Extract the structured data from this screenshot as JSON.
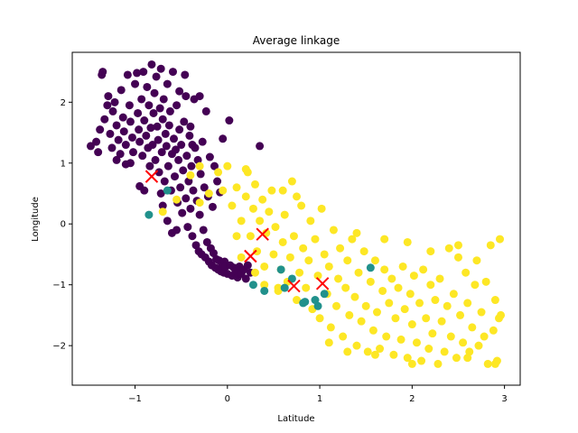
{
  "chart_data": {
    "type": "scatter",
    "title": "Average linkage",
    "xlabel": "Latitude",
    "ylabel": "Longitude",
    "xlim": [
      -1.68,
      3.17
    ],
    "ylim": [
      -2.65,
      2.82
    ],
    "xticks": [
      -1,
      0,
      1,
      2,
      3
    ],
    "yticks": [
      -2,
      -1,
      0,
      1,
      2
    ],
    "x_tick_labels": [
      "−1",
      "0",
      "1",
      "2",
      "3"
    ],
    "y_tick_labels": [
      "−2",
      "−1",
      "0",
      "1",
      "2"
    ],
    "grid": false,
    "legend": "none",
    "colors": {
      "cluster_purple": "#440154",
      "cluster_teal": "#21918c",
      "cluster_yellow": "#fde725",
      "centroid": "#ff0000"
    },
    "series": [
      {
        "color": "#440154",
        "points": [
          [
            -1.48,
            1.28
          ],
          [
            -1.42,
            1.35
          ],
          [
            -1.4,
            1.18
          ],
          [
            -1.38,
            1.55
          ],
          [
            -1.36,
            2.45
          ],
          [
            -1.35,
            2.5
          ],
          [
            -1.33,
            1.72
          ],
          [
            -1.3,
            1.95
          ],
          [
            -1.29,
            2.1
          ],
          [
            -1.27,
            1.48
          ],
          [
            -1.25,
            1.25
          ],
          [
            -1.24,
            1.85
          ],
          [
            -1.22,
            2.0
          ],
          [
            -1.2,
            1.62
          ],
          [
            -1.18,
            1.38
          ],
          [
            -1.16,
            1.15
          ],
          [
            -1.15,
            2.2
          ],
          [
            -1.13,
            1.75
          ],
          [
            -1.12,
            1.52
          ],
          [
            -1.1,
            1.3
          ],
          [
            -1.08,
            2.45
          ],
          [
            -1.06,
            1.95
          ],
          [
            -1.05,
            1.68
          ],
          [
            -1.03,
            1.42
          ],
          [
            -1.02,
            1.18
          ],
          [
            -1.0,
            2.3
          ],
          [
            -0.98,
            2.48
          ],
          [
            -0.97,
            1.82
          ],
          [
            -0.96,
            1.55
          ],
          [
            -0.95,
            1.35
          ],
          [
            -0.93,
            2.05
          ],
          [
            -0.92,
            1.12
          ],
          [
            -0.91,
            2.5
          ],
          [
            -0.9,
            1.7
          ],
          [
            -0.88,
            1.45
          ],
          [
            -0.87,
            2.25
          ],
          [
            -0.86,
            1.25
          ],
          [
            -0.85,
            1.95
          ],
          [
            -0.84,
            0.95
          ],
          [
            -0.83,
            1.58
          ],
          [
            -0.82,
            2.62
          ],
          [
            -0.81,
            1.3
          ],
          [
            -0.8,
            1.82
          ],
          [
            -0.79,
            2.15
          ],
          [
            -0.78,
            1.05
          ],
          [
            -0.77,
            2.42
          ],
          [
            -0.76,
            1.6
          ],
          [
            -0.75,
            1.38
          ],
          [
            -0.74,
            0.85
          ],
          [
            -0.73,
            1.9
          ],
          [
            -0.72,
            2.55
          ],
          [
            -0.71,
            1.18
          ],
          [
            -0.7,
            1.72
          ],
          [
            -0.69,
            2.05
          ],
          [
            -0.68,
            0.7
          ],
          [
            -0.67,
            1.48
          ],
          [
            -0.66,
            1.28
          ],
          [
            -0.65,
            2.3
          ],
          [
            -0.64,
            0.95
          ],
          [
            -0.63,
            1.62
          ],
          [
            -0.62,
            1.85
          ],
          [
            -0.61,
            0.55
          ],
          [
            -0.6,
            1.15
          ],
          [
            -0.59,
            2.5
          ],
          [
            -0.58,
            1.4
          ],
          [
            -0.57,
            0.78
          ],
          [
            -0.56,
            1.22
          ],
          [
            -0.55,
            1.95
          ],
          [
            -0.54,
            0.35
          ],
          [
            -0.53,
            1.05
          ],
          [
            -0.52,
            1.55
          ],
          [
            -0.51,
            0.6
          ],
          [
            -0.5,
            1.3
          ],
          [
            -0.49,
            0.18
          ],
          [
            -0.48,
            0.88
          ],
          [
            -0.47,
            1.68
          ],
          [
            -0.46,
            2.45
          ],
          [
            -0.45,
            0.42
          ],
          [
            -0.44,
            1.12
          ],
          [
            -0.43,
            -0.05
          ],
          [
            -0.42,
            0.7
          ],
          [
            -0.41,
            1.45
          ],
          [
            -0.4,
            0.25
          ],
          [
            -0.39,
            0.95
          ],
          [
            -0.38,
            -0.2
          ],
          [
            -0.37,
            0.55
          ],
          [
            -0.36,
            2.05
          ],
          [
            -0.35,
            1.25
          ],
          [
            -0.34,
            -0.35
          ],
          [
            -0.33,
            0.38
          ],
          [
            -0.32,
            1.05
          ],
          [
            -0.31,
            -0.45
          ],
          [
            -0.3,
            0.15
          ],
          [
            -0.29,
            0.82
          ],
          [
            -0.28,
            -0.5
          ],
          [
            -0.27,
            1.35
          ],
          [
            -0.26,
            -0.1
          ],
          [
            -0.25,
            0.6
          ],
          [
            -0.24,
            -0.55
          ],
          [
            -0.23,
            1.85
          ],
          [
            -0.22,
            -0.3
          ],
          [
            -0.21,
            0.45
          ],
          [
            -0.2,
            -0.62
          ],
          [
            -0.19,
            1.1
          ],
          [
            -0.18,
            -0.4
          ],
          [
            -0.17,
            -0.68
          ],
          [
            -0.16,
            0.28
          ],
          [
            -0.15,
            -0.48
          ],
          [
            -0.14,
            0.95
          ],
          [
            -0.13,
            -0.72
          ],
          [
            -0.12,
            -0.58
          ],
          [
            -0.11,
            0.7
          ],
          [
            -0.1,
            -0.75
          ],
          [
            -0.09,
            -0.6
          ],
          [
            -0.08,
            0.52
          ],
          [
            -0.07,
            -0.78
          ],
          [
            -0.06,
            -0.65
          ],
          [
            -0.05,
            1.4
          ],
          [
            -0.04,
            -0.8
          ],
          [
            -0.03,
            -0.62
          ],
          [
            -0.02,
            -0.7
          ],
          [
            0.0,
            -0.82
          ],
          [
            0.02,
            1.7
          ],
          [
            0.03,
            -0.68
          ],
          [
            0.05,
            -0.85
          ],
          [
            0.07,
            -0.72
          ],
          [
            0.09,
            -0.78
          ],
          [
            0.11,
            -0.88
          ],
          [
            0.13,
            -0.7
          ],
          [
            0.15,
            -0.82
          ],
          [
            0.18,
            -0.75
          ],
          [
            0.2,
            -0.9
          ],
          [
            0.22,
            -0.68
          ],
          [
            0.25,
            -0.8
          ],
          [
            0.35,
            1.28
          ],
          [
            -0.95,
            0.62
          ],
          [
            -0.72,
            0.5
          ],
          [
            -0.9,
            0.55
          ],
          [
            -1.05,
            1.0
          ],
          [
            -0.65,
            0.05
          ],
          [
            -0.6,
            -0.15
          ],
          [
            -0.55,
            -0.1
          ],
          [
            -0.7,
            0.3
          ],
          [
            -1.2,
            1.05
          ],
          [
            -1.1,
            0.98
          ],
          [
            -0.3,
            2.1
          ],
          [
            -0.52,
            2.18
          ],
          [
            -0.45,
            2.1
          ],
          [
            -0.4,
            1.6
          ],
          [
            -0.38,
            1.3
          ]
        ]
      },
      {
        "color": "#fde725",
        "points": [
          [
            -0.7,
            0.2
          ],
          [
            -0.55,
            0.4
          ],
          [
            -0.4,
            0.8
          ],
          [
            -0.3,
            0.95
          ],
          [
            -0.1,
            0.85
          ],
          [
            -0.05,
            0.55
          ],
          [
            0.0,
            0.95
          ],
          [
            0.05,
            0.3
          ],
          [
            0.1,
            0.6
          ],
          [
            0.15,
            0.05
          ],
          [
            0.2,
            0.45
          ],
          [
            0.22,
            0.85
          ],
          [
            0.25,
            -0.2
          ],
          [
            0.28,
            0.25
          ],
          [
            0.3,
            0.65
          ],
          [
            0.32,
            -0.45
          ],
          [
            0.35,
            0.05
          ],
          [
            0.38,
            0.4
          ],
          [
            0.4,
            -0.7
          ],
          [
            0.42,
            -0.15
          ],
          [
            0.45,
            0.2
          ],
          [
            0.48,
            0.55
          ],
          [
            0.5,
            -0.5
          ],
          [
            0.52,
            -0.05
          ],
          [
            0.55,
            -1.1
          ],
          [
            0.58,
            -0.75
          ],
          [
            0.6,
            -0.3
          ],
          [
            0.62,
            0.15
          ],
          [
            0.65,
            -0.95
          ],
          [
            0.68,
            -0.55
          ],
          [
            0.7,
            0.7
          ],
          [
            0.72,
            -0.2
          ],
          [
            0.75,
            -1.25
          ],
          [
            0.78,
            -0.8
          ],
          [
            0.8,
            0.3
          ],
          [
            0.82,
            -0.4
          ],
          [
            0.85,
            -1.05
          ],
          [
            0.88,
            -0.6
          ],
          [
            0.9,
            0.05
          ],
          [
            0.92,
            -1.4
          ],
          [
            0.95,
            -0.25
          ],
          [
            0.98,
            -0.85
          ],
          [
            1.0,
            -1.55
          ],
          [
            1.02,
            0.25
          ],
          [
            1.05,
            -0.5
          ],
          [
            1.08,
            -1.15
          ],
          [
            1.1,
            -0.7
          ],
          [
            1.12,
            -1.7
          ],
          [
            1.15,
            -0.1
          ],
          [
            1.18,
            -1.35
          ],
          [
            1.2,
            -0.9
          ],
          [
            1.22,
            -0.4
          ],
          [
            1.25,
            -1.85
          ],
          [
            1.28,
            -1.05
          ],
          [
            1.3,
            -0.6
          ],
          [
            1.32,
            -1.5
          ],
          [
            1.35,
            -0.25
          ],
          [
            1.38,
            -1.2
          ],
          [
            1.4,
            -2.0
          ],
          [
            1.42,
            -0.8
          ],
          [
            1.45,
            -1.6
          ],
          [
            1.48,
            -0.45
          ],
          [
            1.5,
            -1.35
          ],
          [
            1.52,
            -2.1
          ],
          [
            1.55,
            -0.95
          ],
          [
            1.58,
            -1.75
          ],
          [
            1.6,
            -0.6
          ],
          [
            1.62,
            -1.45
          ],
          [
            1.65,
            -2.05
          ],
          [
            1.68,
            -1.1
          ],
          [
            1.7,
            -0.75
          ],
          [
            1.72,
            -1.85
          ],
          [
            1.75,
            -1.3
          ],
          [
            1.78,
            -0.9
          ],
          [
            1.8,
            -2.15
          ],
          [
            1.82,
            -1.55
          ],
          [
            1.85,
            -1.05
          ],
          [
            1.88,
            -1.9
          ],
          [
            1.9,
            -0.7
          ],
          [
            1.92,
            -1.4
          ],
          [
            1.95,
            -2.2
          ],
          [
            1.98,
            -1.15
          ],
          [
            2.0,
            -1.65
          ],
          [
            2.02,
            -0.85
          ],
          [
            2.05,
            -1.95
          ],
          [
            2.08,
            -1.3
          ],
          [
            2.1,
            -2.25
          ],
          [
            2.12,
            -0.75
          ],
          [
            2.15,
            -1.55
          ],
          [
            2.18,
            -2.05
          ],
          [
            2.2,
            -1.0
          ],
          [
            2.22,
            -1.8
          ],
          [
            2.25,
            -1.25
          ],
          [
            2.28,
            -2.3
          ],
          [
            2.3,
            -0.9
          ],
          [
            2.32,
            -1.6
          ],
          [
            2.35,
            -2.1
          ],
          [
            2.38,
            -1.35
          ],
          [
            2.4,
            -0.4
          ],
          [
            2.42,
            -1.85
          ],
          [
            2.45,
            -1.15
          ],
          [
            2.48,
            -2.2
          ],
          [
            2.5,
            -0.55
          ],
          [
            2.52,
            -1.5
          ],
          [
            2.55,
            -1.95
          ],
          [
            2.58,
            -0.8
          ],
          [
            2.6,
            -1.3
          ],
          [
            2.62,
            -2.1
          ],
          [
            2.65,
            -1.7
          ],
          [
            2.68,
            -1.0
          ],
          [
            2.7,
            -0.6
          ],
          [
            2.72,
            -2.0
          ],
          [
            2.75,
            -1.45
          ],
          [
            2.78,
            -1.85
          ],
          [
            2.8,
            -0.95
          ],
          [
            2.82,
            -2.3
          ],
          [
            2.85,
            -0.35
          ],
          [
            2.88,
            -1.75
          ],
          [
            2.9,
            -1.25
          ],
          [
            2.92,
            -2.25
          ],
          [
            2.94,
            -1.55
          ],
          [
            2.95,
            -0.25
          ],
          [
            2.5,
            -0.35
          ],
          [
            2.2,
            -0.45
          ],
          [
            1.95,
            -0.3
          ],
          [
            1.7,
            -0.25
          ],
          [
            1.4,
            -0.15
          ],
          [
            0.75,
            0.45
          ],
          [
            0.6,
            0.55
          ],
          [
            0.2,
            0.9
          ],
          [
            -0.2,
            0.5
          ],
          [
            -0.3,
            0.35
          ],
          [
            0.55,
            -1.05
          ],
          [
            0.4,
            -1.0
          ],
          [
            0.3,
            -0.8
          ],
          [
            0.15,
            -0.55
          ],
          [
            0.1,
            -0.2
          ],
          [
            1.1,
            -1.95
          ],
          [
            1.3,
            -2.1
          ],
          [
            1.6,
            -2.15
          ],
          [
            2.0,
            -2.3
          ],
          [
            2.6,
            -2.2
          ],
          [
            2.9,
            -2.3
          ],
          [
            2.96,
            -1.5
          ]
        ]
      },
      {
        "color": "#21918c",
        "points": [
          [
            0.82,
            -1.3
          ],
          [
            0.84,
            -1.28
          ],
          [
            0.95,
            -1.25
          ],
          [
            1.05,
            -1.15
          ],
          [
            0.98,
            -1.35
          ],
          [
            0.62,
            -1.05
          ],
          [
            0.4,
            -1.1
          ],
          [
            0.28,
            -1.0
          ],
          [
            0.58,
            -0.75
          ],
          [
            0.7,
            -0.9
          ],
          [
            1.55,
            -0.72
          ],
          [
            -0.85,
            0.15
          ],
          [
            -0.65,
            0.55
          ]
        ]
      }
    ],
    "centroids": [
      [
        -0.82,
        0.78
      ],
      [
        0.38,
        -0.17
      ],
      [
        0.25,
        -0.53
      ],
      [
        0.72,
        -1.02
      ],
      [
        1.03,
        -0.98
      ]
    ]
  }
}
